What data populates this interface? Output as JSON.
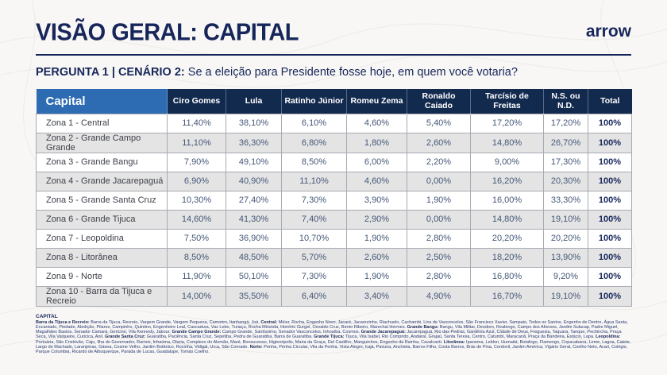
{
  "page": {
    "title": "VISÃO GERAL: CAPITAL",
    "brand": "arrow",
    "question_prefix": "PERGUNTA 1 | CENÁRIO 2:",
    "question_text": "Se a eleição para Presidente fosse hoje, em quem você votaria?"
  },
  "colors": {
    "navy": "#16265a",
    "header_bg": "#132a4f",
    "capital_cell_blue": "#2d6cb3",
    "alt_row_gray": "#e4e4e4",
    "value_text": "#455878",
    "page_bg": "#f8f7f5"
  },
  "table": {
    "corner_label": "Capital",
    "columns": [
      "Ciro Gomes",
      "Lula",
      "Ratinho Júnior",
      "Romeu Zema",
      "Ronaldo Caiado",
      "Tarcísio de Freitas",
      "N.S. ou N.D.",
      "Total"
    ],
    "rows": [
      {
        "zone": "Zona 1 - Central",
        "values": [
          "11,40%",
          "38,10%",
          "6,10%",
          "4,60%",
          "5,40%",
          "17,20%",
          "17,20%",
          "100%"
        ]
      },
      {
        "zone": "Zona 2 - Grande Campo Grande",
        "values": [
          "11,10%",
          "36,30%",
          "6,80%",
          "1,80%",
          "2,60%",
          "14,80%",
          "26,70%",
          "100%"
        ]
      },
      {
        "zone": "Zona 3 - Grande Bangu",
        "values": [
          "7,90%",
          "49,10%",
          "8,50%",
          "6,00%",
          "2,20%",
          "9,00%",
          "17,30%",
          "100%"
        ]
      },
      {
        "zone": "Zona 4 - Grande Jacarepaguá",
        "values": [
          "6,90%",
          "40,90%",
          "11,10%",
          "4,60%",
          "0,00%",
          "16,20%",
          "20,30%",
          "100%"
        ]
      },
      {
        "zone": "Zona 5 - Grande Santa Cruz",
        "values": [
          "10,30%",
          "27,40%",
          "7,30%",
          "3,90%",
          "1,90%",
          "16,00%",
          "33,30%",
          "100%"
        ]
      },
      {
        "zone": "Zona 6 - Grande Tijuca",
        "values": [
          "14,60%",
          "41,30%",
          "7,40%",
          "2,90%",
          "0,00%",
          "14,80%",
          "19,10%",
          "100%"
        ]
      },
      {
        "zone": "Zona 7 - Leopoldina",
        "values": [
          "7,50%",
          "36,90%",
          "10,70%",
          "1,90%",
          "2,80%",
          "20,20%",
          "20,20%",
          "100%"
        ]
      },
      {
        "zone": "Zona 8 - Litorânea",
        "values": [
          "8,50%",
          "48,50%",
          "5,70%",
          "2,60%",
          "2,50%",
          "18,20%",
          "13,90%",
          "100%"
        ]
      },
      {
        "zone": "Zona 9 - Norte",
        "values": [
          "11,90%",
          "50,10%",
          "7,30%",
          "1,90%",
          "2,80%",
          "16,80%",
          "9,20%",
          "100%"
        ]
      },
      {
        "zone": "Zona 10 - Barra da Tijuca e Recreio",
        "values": [
          "14,00%",
          "35,50%",
          "6,40%",
          "3,40%",
          "4,90%",
          "16,70%",
          "19,10%",
          "100%"
        ]
      }
    ]
  },
  "chart_data": {
    "type": "table",
    "title": "PERGUNTA 1 | CENÁRIO 2: Se a eleição para Presidente fosse hoje, em quem você votaria?",
    "row_header": "Capital",
    "columns": [
      "Ciro Gomes",
      "Lula",
      "Ratinho Júnior",
      "Romeu Zema",
      "Ronaldo Caiado",
      "Tarcísio de Freitas",
      "N.S. ou N.D.",
      "Total"
    ],
    "row_labels": [
      "Zona 1 - Central",
      "Zona 2 - Grande Campo Grande",
      "Zona 3 - Grande Bangu",
      "Zona 4 - Grande Jacarepaguá",
      "Zona 5 - Grande Santa Cruz",
      "Zona 6 - Grande Tijuca",
      "Zona 7 - Leopoldina",
      "Zona 8 - Litorânea",
      "Zona 9 - Norte",
      "Zona 10 - Barra da Tijuca e Recreio"
    ],
    "values_percent": [
      [
        11.4,
        38.1,
        6.1,
        4.6,
        5.4,
        17.2,
        17.2,
        100
      ],
      [
        11.1,
        36.3,
        6.8,
        1.8,
        2.6,
        14.8,
        26.7,
        100
      ],
      [
        7.9,
        49.1,
        8.5,
        6.0,
        2.2,
        9.0,
        17.3,
        100
      ],
      [
        6.9,
        40.9,
        11.1,
        4.6,
        0.0,
        16.2,
        20.3,
        100
      ],
      [
        10.3,
        27.4,
        7.3,
        3.9,
        1.9,
        16.0,
        33.3,
        100
      ],
      [
        14.6,
        41.3,
        7.4,
        2.9,
        0.0,
        14.8,
        19.1,
        100
      ],
      [
        7.5,
        36.9,
        10.7,
        1.9,
        2.8,
        20.2,
        20.2,
        100
      ],
      [
        8.5,
        48.5,
        5.7,
        2.6,
        2.5,
        18.2,
        13.9,
        100
      ],
      [
        11.9,
        50.1,
        7.3,
        1.9,
        2.8,
        16.8,
        9.2,
        100
      ],
      [
        14.0,
        35.5,
        6.4,
        3.4,
        4.9,
        16.7,
        19.1,
        100
      ]
    ]
  },
  "footnote": {
    "title": "CAPITAL",
    "segments": [
      {
        "label": "Barra da Tijuca e Recreio:",
        "text": " Barra da Tijuca, Recreio, Vargem Grande, Vargem Pequena, Camorim, Itanhangá, Joá. "
      },
      {
        "label": "Central:",
        "text": " Méier, Rocha, Engenho Novo, Jacaré, Jacarezinho, Riachuelo, Cachambi, Lins de Vasconcelos, São Francisco Xavier, Sampaio, Todos os Santos, Engenho de Dentro, Água Santa, Encantado, Piedade, Abolição, Pilares, Campinho, Quintino, Engenheiro Leal, Cascadura, Vaz Lobo, Turiaçu, Rocha Miranda, Honório Gurgel, Osvaldo Cruz, Bento Ribeiro, Marechal Hermes. "
      },
      {
        "label": "Grande Bangu:",
        "text": " Bangu, Vila Militar, Deodoro, Realengo, Campo dos Afonsos, Jardim Sulacap, Padre Miguel, Magalhães Bastos, Senador Camará, Gericinó, Vila Kennedy, Jabour. "
      },
      {
        "label": "Grande Campo Grande:",
        "text": " Campo Grande, Santíssimo, Senador Vasconcelos, Inhoaíba, Cosmos. "
      },
      {
        "label": "Grande Jacarepaguá:",
        "text": " Jacarepaguá, Rio das Pedras, Gardênia Azul, Cidade de Deus, Freguesia, Taquara, Tanque, Pechincha, Praça Seca, Vila Valqueire, Curicica, Anil. "
      },
      {
        "label": "Grande Santa Cruz:",
        "text": " Guaratiba, Paciência, Santa Cruz, Sepetiba, Pedra de Guaratiba, Barra de Guaratiba. "
      },
      {
        "label": "Grande Tijuca:",
        "text": " Tijuca, Vila Isabel, Rio Comprido, Andaraí, Grajaú, Santa Teresa, Centro, Catumbi, Maracanã, Praça da Bandeira, Estácio, Lapa. "
      },
      {
        "label": "Leopoldina:",
        "text": " Portuária, São Cristóvão, Caju, Ilha do Governador, Ramos, Inhaúma, Olaria, Complexo do Alemão, Maré, Bonsucesso, Higienópolis, Maria da Graça, Del Castilho, Manguinhos, Engenho da Rainha, Cavalcanti. "
      },
      {
        "label": "Litorânea:",
        "text": " Ipanema, Leblon, Humaitá, Botafogo, Flamengo, Copacabana, Leme, Lagoa, Catete, Largo do Machado, Laranjeiras, Gávea, Cosme Velho, Jardim Botânico, Rocinha, Vidigal, Urca, São Conrado. "
      },
      {
        "label": "Norte:",
        "text": " Penha, Penha Circular, Vila da Penha, Vista Alegre, Irajá, Pavuna, Anchieta, Barros Filho, Costa Barros, Brás de Pina, Cordovil, Jardim América, Vigário Geral, Coelho Neto, Acari, Colégio, Parque Columbia, Ricardo de Albuquerque, Parada de Lucas, Guadalupe, Tomás Coelho."
      }
    ]
  }
}
